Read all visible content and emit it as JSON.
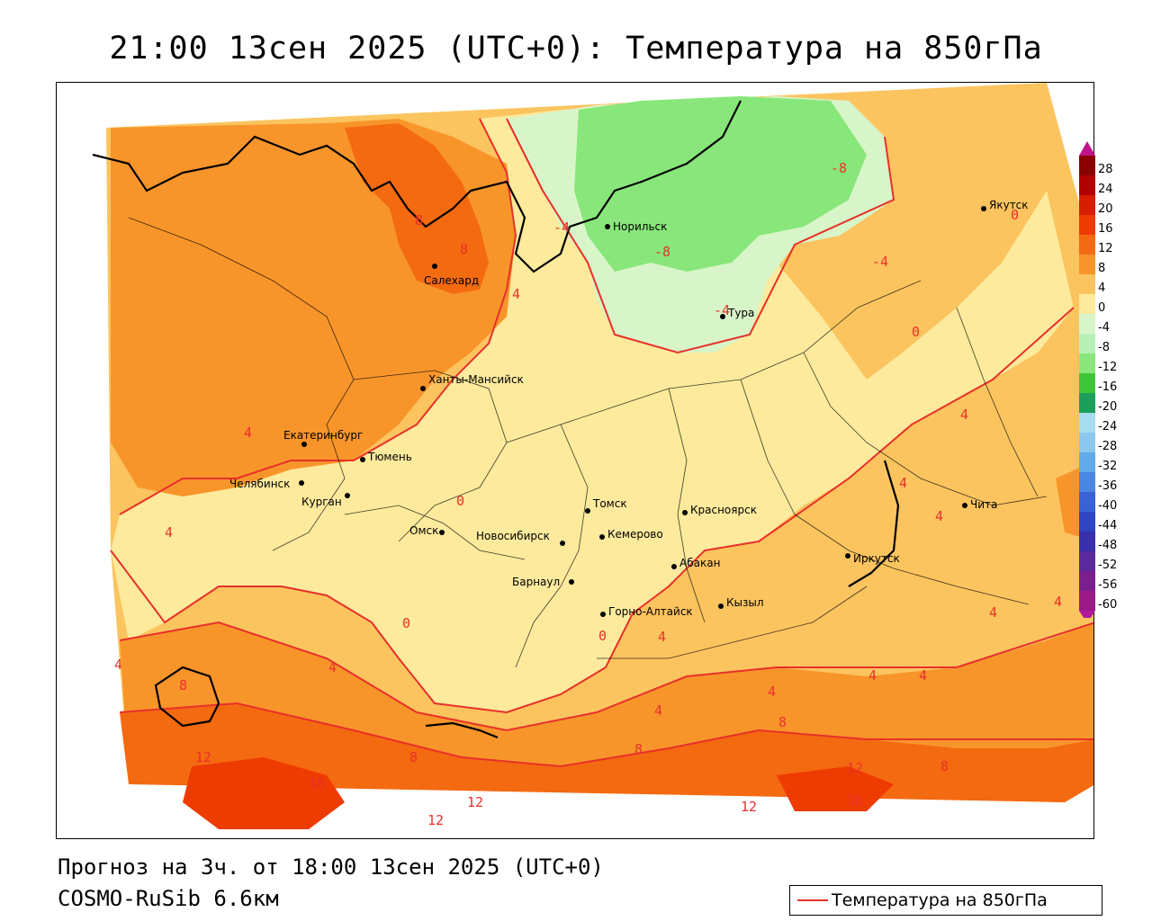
{
  "title": "21:00 13сен 2025 (UTC+0): Температура на 850гПа",
  "footer": {
    "forecast": "Прогноз на 3ч. от 18:00 13сен 2025 (UTC+0)",
    "model": "COSMO-RuSib 6.6км"
  },
  "legend": {
    "line_label": "Температура на 850гПа",
    "line_color": "#e8302a"
  },
  "scale": {
    "labels": [
      "28",
      "24",
      "20",
      "16",
      "12",
      "8",
      "4",
      "0",
      "-4",
      "-8",
      "-12",
      "-16",
      "-20",
      "-24",
      "-28",
      "-32",
      "-36",
      "-40",
      "-44",
      "-48",
      "-52",
      "-56",
      "-60"
    ],
    "colors": [
      "#8b0000",
      "#b00000",
      "#d61e00",
      "#ee3b00",
      "#f46a10",
      "#f8952a",
      "#fbc45f",
      "#fdea9c",
      "#d8f5c9",
      "#b8f0b6",
      "#88e67a",
      "#3ec63a",
      "#1aa05a",
      "#a8dcf0",
      "#8cc8ee",
      "#62aaea",
      "#4a86e2",
      "#3a62d8",
      "#2f45c4",
      "#3a2fae",
      "#5a2a9c",
      "#7a1f8e",
      "#9a1a88"
    ]
  },
  "cities": [
    {
      "name": "Норильск"
    },
    {
      "name": "Салехард"
    },
    {
      "name": "Тура"
    },
    {
      "name": "Якутск"
    },
    {
      "name": "Ханты-Мансийск"
    },
    {
      "name": "Екатеринбург"
    },
    {
      "name": "Тюмень"
    },
    {
      "name": "Челябинск"
    },
    {
      "name": "Курган"
    },
    {
      "name": "Омск"
    },
    {
      "name": "Томск"
    },
    {
      "name": "Новосибирск"
    },
    {
      "name": "Кемерово"
    },
    {
      "name": "Красноярск"
    },
    {
      "name": "Барнаул"
    },
    {
      "name": "Абакан"
    },
    {
      "name": "Горно-Алтайск"
    },
    {
      "name": "Кызыл"
    },
    {
      "name": "Иркутск"
    },
    {
      "name": "Чита"
    }
  ],
  "isotherm_labels": [
    "8",
    "8",
    "4",
    "-4",
    "-8",
    "-8",
    "-4",
    "0",
    "-4",
    "0",
    "4",
    "4",
    "0",
    "4",
    "4",
    "4",
    "4",
    "4",
    "0",
    "0",
    "4",
    "4",
    "4",
    "4",
    "4",
    "4",
    "4",
    "8",
    "8",
    "8",
    "12",
    "16",
    "12",
    "12",
    "8",
    "12",
    "16",
    "12",
    "8"
  ]
}
